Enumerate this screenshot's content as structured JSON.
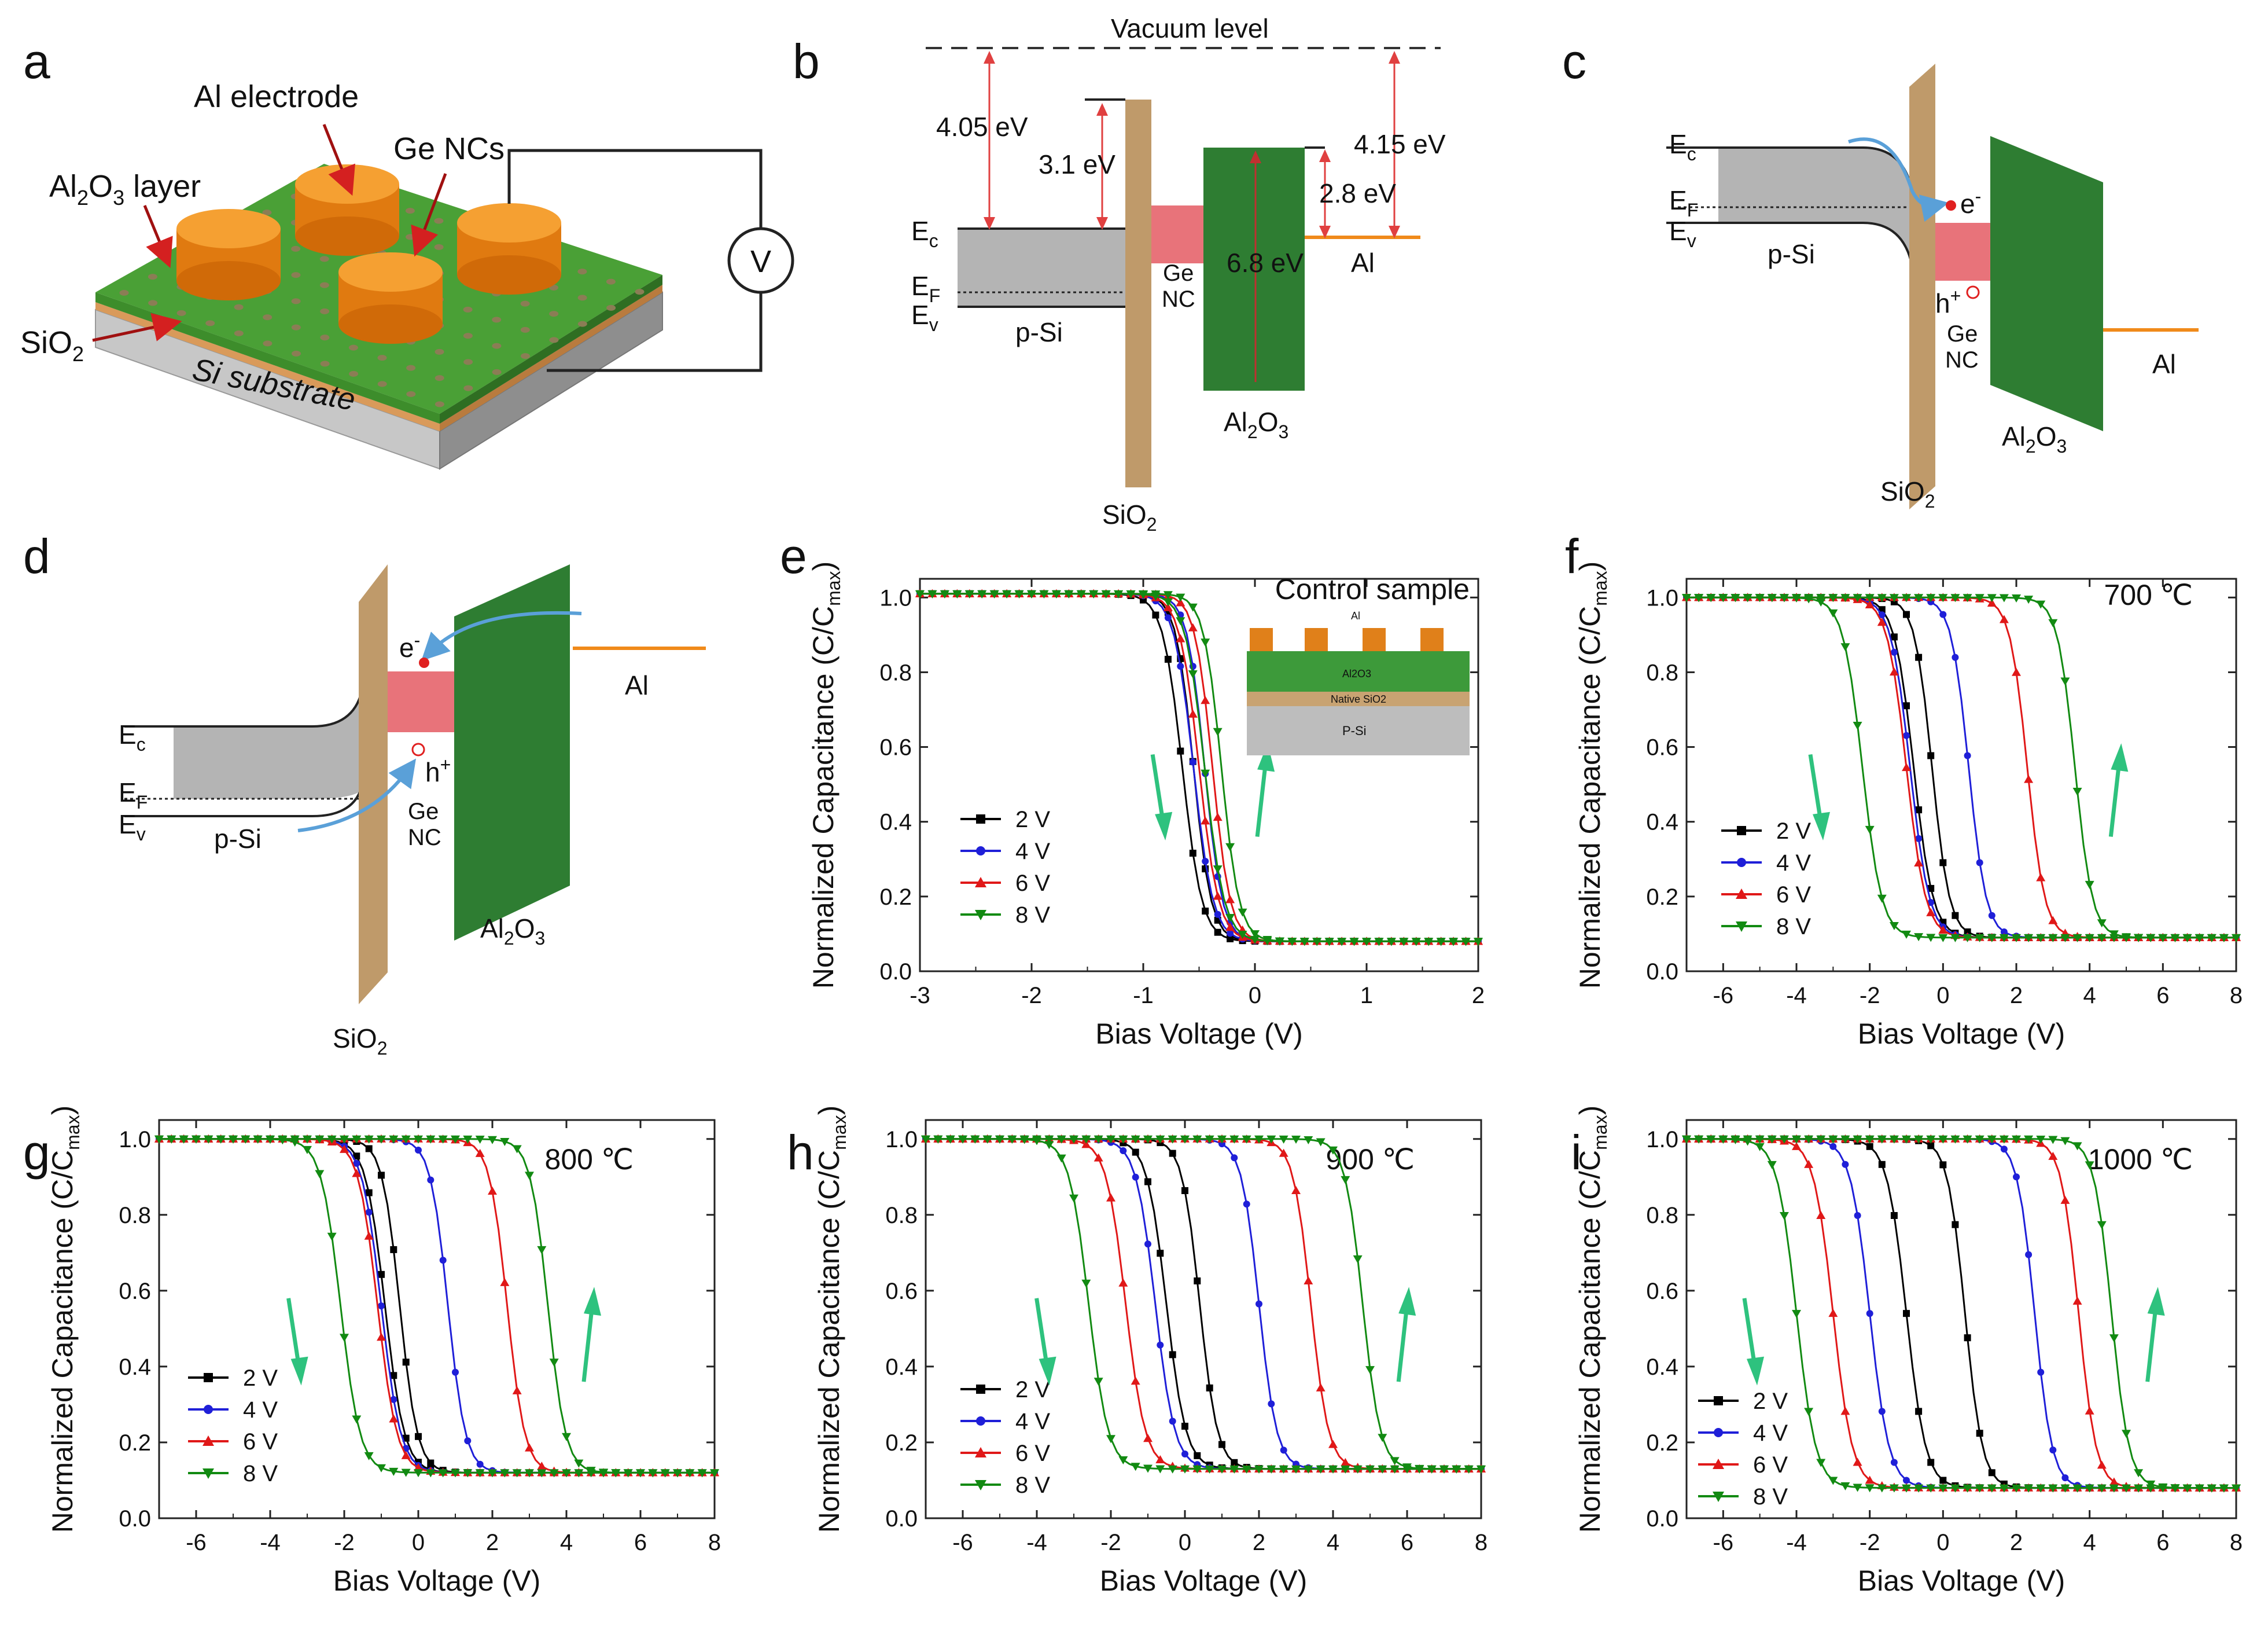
{
  "panels": {
    "a": {
      "label": "a",
      "al_electrode": "Al electrode",
      "ge_ncs": "Ge NCs",
      "al2o3_prefix": "Al",
      "al2o3_sub1": "2",
      "al2o3_mid": "O",
      "al2o3_sub2": "3",
      "al2o3_suffix": " layer",
      "sio2_prefix": "SiO",
      "sio2_sub": "2",
      "substrate": "Si substrate",
      "meter": "V"
    },
    "b": {
      "label": "b",
      "vacuum": "Vacuum level",
      "e1": "4.05 eV",
      "e2": "3.1 eV",
      "e3": "4.15 eV",
      "e4": "2.8 eV",
      "e5": "6.8 eV",
      "ec": "E",
      "ec_sub": "c",
      "ef": "E",
      "ef_sub": "F",
      "ev": "E",
      "ev_sub": "v",
      "psi": "p-Si",
      "ge": "Ge",
      "nc": "NC",
      "al": "Al",
      "al2o3": "Al",
      "al2o3_2": "O",
      "sio2": "SiO",
      "sub2": "2",
      "sub3": "3"
    },
    "c": {
      "label": "c",
      "ec": "E",
      "ec_sub": "c",
      "ef": "E",
      "ef_sub": "F",
      "ev": "E",
      "ev_sub": "v",
      "psi": "p-Si",
      "electron": "e",
      "minus": "-",
      "hole": "h",
      "plus": "+",
      "ge": "Ge",
      "nc": "NC",
      "al": "Al",
      "al2o3": "Al",
      "al2o3_2": "O",
      "sio2": "SiO",
      "sub2": "2",
      "sub3": "3"
    },
    "d": {
      "label": "d",
      "ec": "E",
      "ec_sub": "c",
      "ef": "E",
      "ef_sub": "F",
      "ev": "E",
      "ev_sub": "v",
      "psi": "p-Si",
      "electron": "e",
      "minus": "-",
      "hole": "h",
      "plus": "+",
      "ge": "Ge",
      "nc": "NC",
      "al": "Al",
      "al2o3": "Al",
      "al2o3_2": "O",
      "sio2": "SiO",
      "sub2": "2",
      "sub3": "3"
    }
  },
  "chart_common": {
    "ylabel_prefix": "Normalized Capacitance (C/C",
    "ylabel_sub": "max",
    "ylabel_suffix": ")",
    "xlabel": "Bias Voltage (V)",
    "legend": [
      "2 V",
      "4 V",
      "6 V",
      "8 V"
    ],
    "colors": [
      "#000000",
      "#1f1fd8",
      "#e01818",
      "#128a12"
    ],
    "arrow_color": "#2ec27e"
  },
  "inset_e": {
    "al": "Al",
    "al2o3": "Al2O3",
    "native": "Native SiO2",
    "psi": "P-Si"
  },
  "chart_data": [
    {
      "panel": "e",
      "type": "line",
      "title": "Control sample",
      "xlim": [
        -3,
        2
      ],
      "ylim": [
        0,
        1.05
      ],
      "xticks": [
        -3,
        -2,
        -1,
        0,
        1,
        2
      ],
      "yticks": [
        0.0,
        0.2,
        0.4,
        0.6,
        0.8,
        1.0
      ],
      "top": 1.01,
      "bottom": 0.08,
      "series": [
        {
          "name": "2 V",
          "v_down": -0.65,
          "v_up": -0.55
        },
        {
          "name": "4 V",
          "v_down": -0.55,
          "v_up": -0.45
        },
        {
          "name": "6 V",
          "v_down": -0.5,
          "v_up": -0.38
        },
        {
          "name": "8 V",
          "v_down": -0.45,
          "v_up": -0.3
        }
      ]
    },
    {
      "panel": "f",
      "type": "line",
      "title": "700 ℃",
      "xlim": [
        -7,
        8
      ],
      "ylim": [
        0,
        1.05
      ],
      "xticks": [
        -6,
        -4,
        -2,
        0,
        2,
        4,
        6,
        8
      ],
      "yticks": [
        0.0,
        0.2,
        0.4,
        0.6,
        0.8,
        1.0
      ],
      "top": 1.0,
      "bottom": 0.09,
      "series": [
        {
          "name": "2 V",
          "v_down": -0.8,
          "v_up": -0.3
        },
        {
          "name": "4 V",
          "v_down": -0.9,
          "v_up": 0.7
        },
        {
          "name": "6 V",
          "v_down": -1.0,
          "v_up": 2.3
        },
        {
          "name": "8 V",
          "v_down": -2.2,
          "v_up": 3.6
        }
      ]
    },
    {
      "panel": "g",
      "type": "line",
      "title": "800 ℃",
      "xlim": [
        -7,
        8
      ],
      "ylim": [
        0,
        1.05
      ],
      "xticks": [
        -6,
        -4,
        -2,
        0,
        2,
        4,
        6,
        8
      ],
      "yticks": [
        0.0,
        0.2,
        0.4,
        0.6,
        0.8,
        1.0
      ],
      "top": 1.0,
      "bottom": 0.12,
      "series": [
        {
          "name": "2 V",
          "v_down": -0.9,
          "v_up": -0.5
        },
        {
          "name": "4 V",
          "v_down": -1.0,
          "v_up": 0.8
        },
        {
          "name": "6 V",
          "v_down": -1.1,
          "v_up": 2.4
        },
        {
          "name": "8 V",
          "v_down": -2.1,
          "v_up": 3.5
        }
      ]
    },
    {
      "panel": "h",
      "type": "line",
      "title": "900 ℃",
      "xlim": [
        -7,
        8
      ],
      "ylim": [
        0,
        1.05
      ],
      "xticks": [
        -6,
        -4,
        -2,
        0,
        2,
        4,
        6,
        8
      ],
      "yticks": [
        0.0,
        0.2,
        0.4,
        0.6,
        0.8,
        1.0
      ],
      "top": 1.0,
      "bottom": 0.13,
      "series": [
        {
          "name": "2 V",
          "v_down": -0.5,
          "v_up": 0.4
        },
        {
          "name": "4 V",
          "v_down": -0.8,
          "v_up": 2.0
        },
        {
          "name": "6 V",
          "v_down": -1.6,
          "v_up": 3.4
        },
        {
          "name": "8 V",
          "v_down": -2.6,
          "v_up": 4.8
        }
      ]
    },
    {
      "panel": "i",
      "type": "line",
      "title": "1000 ℃",
      "xlim": [
        -7,
        8
      ],
      "ylim": [
        0,
        1.05
      ],
      "xticks": [
        -6,
        -4,
        -2,
        0,
        2,
        4,
        6,
        8
      ],
      "yticks": [
        0.0,
        0.2,
        0.4,
        0.6,
        0.8,
        1.0
      ],
      "top": 1.0,
      "bottom": 0.08,
      "series": [
        {
          "name": "2 V",
          "v_down": -1.0,
          "v_up": 0.6
        },
        {
          "name": "4 V",
          "v_down": -2.0,
          "v_up": 2.5
        },
        {
          "name": "6 V",
          "v_down": -3.0,
          "v_up": 3.7
        },
        {
          "name": "8 V",
          "v_down": -4.0,
          "v_up": 4.6
        }
      ]
    }
  ]
}
